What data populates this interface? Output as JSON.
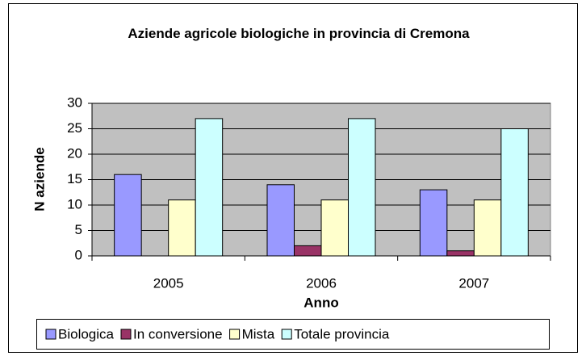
{
  "chart_data": {
    "type": "bar",
    "title": "Aziende agricole biologiche in provincia di Cremona",
    "y_label": "N aziende",
    "x_label": "Anno",
    "categories": [
      "2005",
      "2006",
      "2007"
    ],
    "series": [
      {
        "name": "Biologica",
        "color": "#9999ff",
        "values": [
          16,
          14,
          13
        ]
      },
      {
        "name": "In conversione",
        "color": "#993366",
        "values": [
          0,
          2,
          1
        ]
      },
      {
        "name": "Mista",
        "color": "#ffffcc",
        "values": [
          11,
          11,
          11
        ]
      },
      {
        "name": "Totale provincia",
        "color": "#ccffff",
        "values": [
          27,
          27,
          25
        ]
      }
    ],
    "ylim": [
      0,
      30
    ],
    "yticks": [
      0,
      5,
      10,
      15,
      20,
      25,
      30
    ],
    "grid": true,
    "legend": "bottom"
  }
}
